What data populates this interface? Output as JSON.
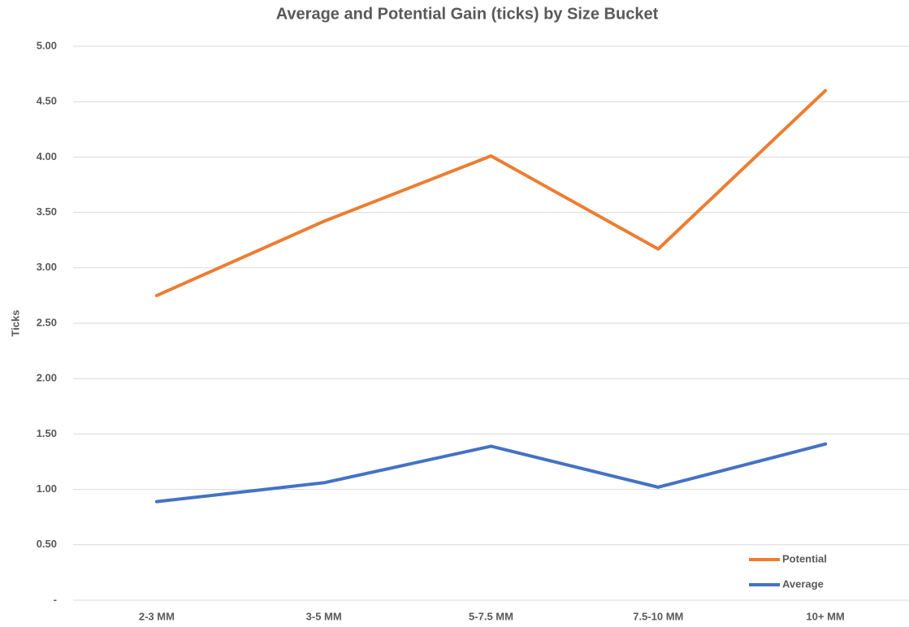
{
  "chart_data": {
    "type": "line",
    "title": "Average and Potential Gain (ticks) by Size Bucket",
    "y_label": "Ticks",
    "categories": [
      "2-3 MM",
      "3-5 MM",
      "5-7.5 MM",
      "7.5-10 MM",
      "10+ MM"
    ],
    "series": [
      {
        "name": "Potential",
        "color": "#ed7d31",
        "values": [
          2.75,
          3.42,
          4.01,
          3.17,
          4.6
        ]
      },
      {
        "name": "Average",
        "color": "#4472c4",
        "values": [
          0.89,
          1.06,
          1.39,
          1.02,
          1.41
        ]
      }
    ],
    "ylim": [
      0,
      5
    ],
    "yticks": [
      {
        "value": 0,
        "label": "-"
      },
      {
        "value": 0.5,
        "label": "0.50"
      },
      {
        "value": 1,
        "label": "1.00"
      },
      {
        "value": 1.5,
        "label": "1.50"
      },
      {
        "value": 2,
        "label": "2.00"
      },
      {
        "value": 2.5,
        "label": "2.50"
      },
      {
        "value": 3,
        "label": "3.00"
      },
      {
        "value": 3.5,
        "label": "3.50"
      },
      {
        "value": 4,
        "label": "4.00"
      },
      {
        "value": 4.5,
        "label": "4.50"
      },
      {
        "value": 5,
        "label": "5.00"
      }
    ],
    "grid": true,
    "legend": "bottom-right"
  }
}
